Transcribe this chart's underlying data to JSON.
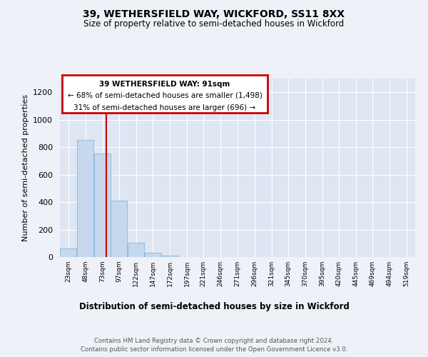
{
  "title": "39, WETHERSFIELD WAY, WICKFORD, SS11 8XX",
  "subtitle": "Size of property relative to semi-detached houses in Wickford",
  "xlabel": "Distribution of semi-detached houses by size in Wickford",
  "ylabel": "Number of semi-detached properties",
  "annotation_line1": "39 WETHERSFIELD WAY: 91sqm",
  "annotation_line2": "← 68% of semi-detached houses are smaller (1,498)",
  "annotation_line3": "31% of semi-detached houses are larger (696) →",
  "property_size": 91,
  "bar_color": "#c5d8ed",
  "bar_edge_color": "#7aaed4",
  "vline_color": "#cc0000",
  "vline_x": 91,
  "categories": [
    "23sqm",
    "48sqm",
    "73sqm",
    "97sqm",
    "122sqm",
    "147sqm",
    "172sqm",
    "197sqm",
    "221sqm",
    "246sqm",
    "271sqm",
    "296sqm",
    "321sqm",
    "345sqm",
    "370sqm",
    "395sqm",
    "420sqm",
    "445sqm",
    "469sqm",
    "494sqm",
    "519sqm"
  ],
  "bin_edges": [
    23,
    48,
    73,
    97,
    122,
    147,
    172,
    197,
    221,
    246,
    271,
    296,
    321,
    345,
    370,
    395,
    420,
    445,
    469,
    494,
    519
  ],
  "bin_width": 25,
  "values": [
    65,
    855,
    755,
    410,
    105,
    30,
    10,
    0,
    0,
    0,
    0,
    0,
    0,
    0,
    0,
    0,
    0,
    0,
    0,
    0,
    0
  ],
  "ylim": [
    0,
    1300
  ],
  "yticks": [
    0,
    200,
    400,
    600,
    800,
    1000,
    1200
  ],
  "footer_line1": "Contains HM Land Registry data © Crown copyright and database right 2024.",
  "footer_line2": "Contains public sector information licensed under the Open Government Licence v3.0.",
  "background_color": "#eef2f8",
  "plot_bg_color": "#dde6f2",
  "grid_color": "#ffffff"
}
